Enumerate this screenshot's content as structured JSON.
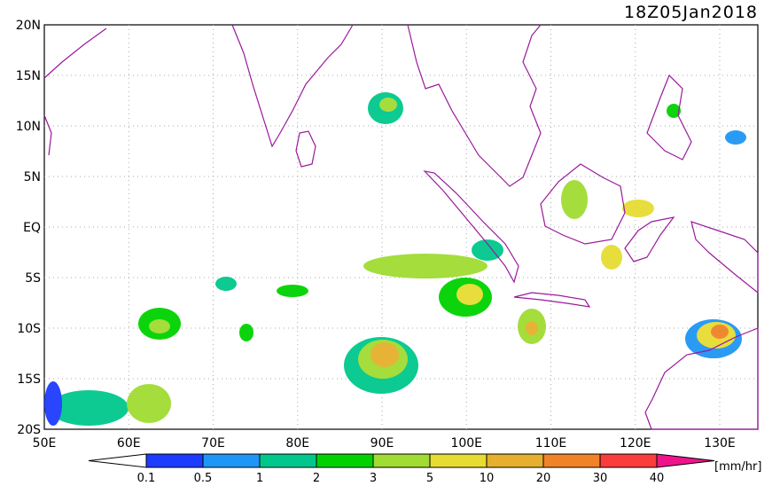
{
  "header": {
    "title": "18Z05Jan2018"
  },
  "axes": {
    "lat_labels": [
      "20N",
      "15N",
      "10N",
      "5N",
      "EQ",
      "5S",
      "10S",
      "15S",
      "20S"
    ],
    "lon_labels": [
      "50E",
      "60E",
      "70E",
      "80E",
      "90E",
      "100E",
      "110E",
      "120E",
      "130E"
    ]
  },
  "colorbar": {
    "labels": [
      "0.1",
      "0.5",
      "1",
      "2",
      "3",
      "5",
      "10",
      "20",
      "30",
      "40"
    ],
    "colors": [
      "#ffffff",
      "#1e3cff",
      "#1e96f5",
      "#00c88c",
      "#00d200",
      "#a0dc32",
      "#e6dc32",
      "#e6af2d",
      "#f08228",
      "#fa3c3c",
      "#f0148c"
    ],
    "unit": "[mm/hr]"
  }
}
